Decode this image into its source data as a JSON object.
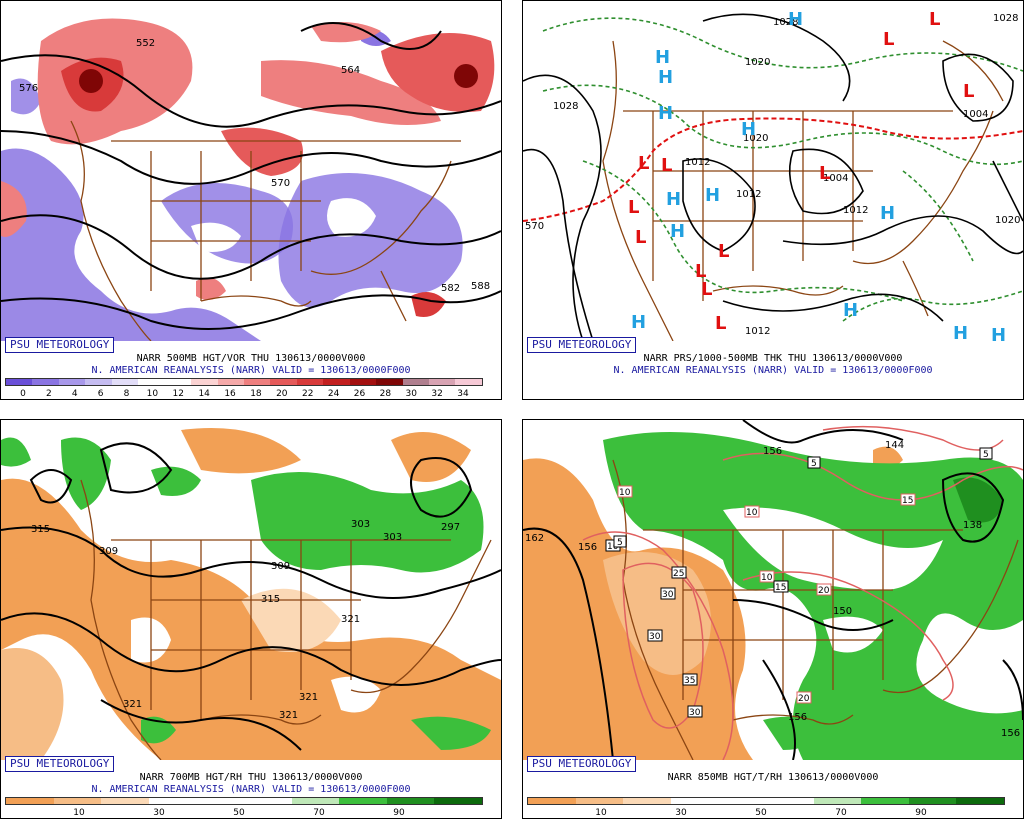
{
  "panels": {
    "p500": {
      "badge": "PSU METEOROLOGY",
      "title": "NARR 500MB HGT/VOR THU  130613/0000V000",
      "subtitle": "N. AMERICAN REANALYSIS (NARR) VALID = 130613/0000F000",
      "colorbar_labels": [
        "0",
        "2",
        "4",
        "6",
        "8",
        "10",
        "12",
        "14",
        "16",
        "18",
        "20",
        "22",
        "24",
        "26",
        "28",
        "30",
        "32",
        "34"
      ],
      "colorbar_colors": [
        "#6a4fd8",
        "#8a74e2",
        "#a898ea",
        "#c5bcf1",
        "#e2ddf8",
        "#ffffff",
        "#ffffff",
        "#fbd3d3",
        "#f5a9a9",
        "#ee7f7f",
        "#e55a5a",
        "#d83a3a",
        "#c21f1f",
        "#a30f0f",
        "#7f0606",
        "#b07f8f",
        "#d8a3b3",
        "#f6c9d6"
      ],
      "contour_labels": [
        "576",
        "582",
        "588",
        "564",
        "570",
        "552",
        "576",
        "588",
        "588",
        "576"
      ]
    },
    "pmslp": {
      "badge": "PSU METEOROLOGY",
      "title": "NARR PRS/1000-500MB THK THU  130613/0000V000",
      "subtitle": "N. AMERICAN REANALYSIS (NARR) VALID = 130613/0000F000",
      "high_symbol": "H",
      "low_symbol": "L",
      "contour_labels": [
        "1028",
        "1028",
        "1020",
        "1012",
        "1012",
        "1004",
        "1004",
        "1012",
        "1020",
        "1012",
        "1012",
        "1012",
        "570",
        "1020",
        "1004"
      ],
      "colors": {
        "high": "#22a0e0",
        "low": "#e01010",
        "thickness": "#2f8f2f",
        "thickness_540": "#e01010"
      }
    },
    "p700": {
      "badge": "PSU METEOROLOGY",
      "title": "NARR 700MB HGT/RH THU  130613/0000V000",
      "subtitle": "N. AMERICAN REANALYSIS (NARR) VALID = 130613/0000F000",
      "colorbar_labels": [
        "10",
        "30",
        "50",
        "70",
        "90"
      ],
      "colorbar_colors": [
        "#f2a055",
        "#f6bd86",
        "#fbd9b6",
        "#ffffff",
        "#ffffff",
        "#ffffff",
        "#bfe8b8",
        "#3cbf3c",
        "#1f8f1f",
        "#0c6a0c"
      ],
      "contour_labels": [
        "315",
        "309",
        "321",
        "309",
        "303",
        "297",
        "315",
        "321",
        "321",
        "321",
        "303"
      ]
    },
    "p850": {
      "badge": "PSU METEOROLOGY",
      "title": "NARR 850MB HGT/T/RH  130613/0000V000",
      "subtitle": "",
      "colorbar_labels": [
        "10",
        "30",
        "50",
        "70",
        "90"
      ],
      "colorbar_colors": [
        "#f2a055",
        "#f6bd86",
        "#fbd9b6",
        "#ffffff",
        "#ffffff",
        "#ffffff",
        "#bfe8b8",
        "#3cbf3c",
        "#1f8f1f",
        "#0c6a0c"
      ],
      "contour_labels": [
        "156",
        "144",
        "162",
        "156",
        "150",
        "156",
        "138",
        "156"
      ],
      "temp_labels": [
        "5",
        "5",
        "10",
        "10",
        "15",
        "10",
        "15",
        "20",
        "10",
        "25",
        "30",
        "30",
        "35",
        "30",
        "20",
        "5"
      ]
    }
  }
}
